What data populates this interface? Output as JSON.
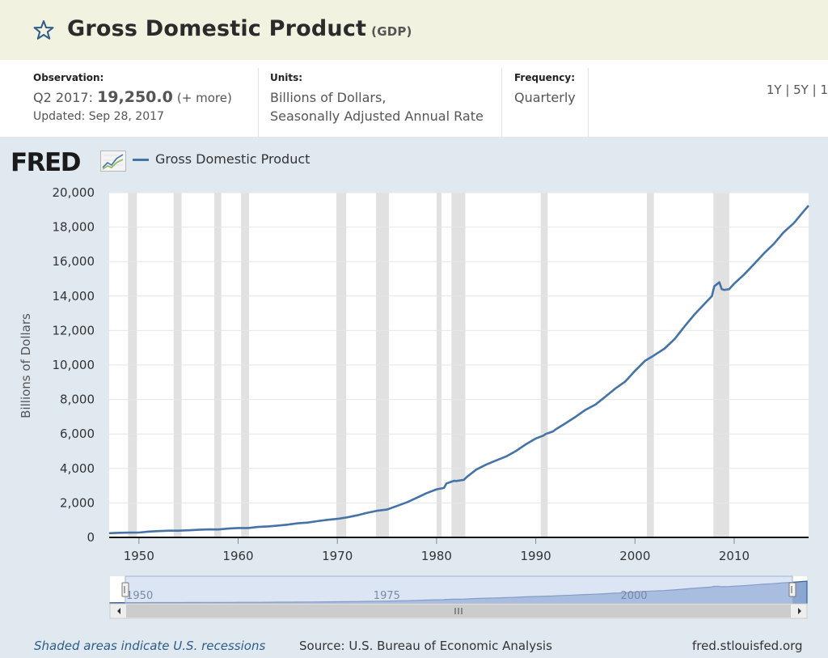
{
  "header": {
    "title": "Gross Domestic Product",
    "series_id": "(GDP)",
    "star_icon": "star-outline-icon"
  },
  "observation": {
    "label": "Observation:",
    "period": "Q2 2017:",
    "value": "19,250.0",
    "more": "(+ more)",
    "updated": "Updated: Sep 28, 2017"
  },
  "units": {
    "label": "Units:",
    "line1": "Billions of Dollars,",
    "line2": "Seasonally Adjusted Annual Rate"
  },
  "frequency": {
    "label": "Frequency:",
    "value": "Quarterly"
  },
  "ranges": [
    "1Y",
    "5Y",
    "1"
  ],
  "brand": {
    "logo": "FRED",
    "graph_icon": "fred-graph-icon"
  },
  "footer": {
    "recessions": "Shaded areas indicate U.S. recessions",
    "source": "Source: U.S. Bureau of Economic Analysis",
    "site": "fred.stlouisfed.org"
  },
  "colors": {
    "line": "#4572a7",
    "recession": "#e1e1e1",
    "navigator_fill": "#8ca6d4",
    "navigator_mask": "#c0cfea"
  },
  "chart_data": {
    "type": "line",
    "title": "",
    "legend": "top-left",
    "xlabel": "",
    "ylabel": "Billions of Dollars",
    "xlim": [
      1947,
      2017.5
    ],
    "ylim": [
      0,
      20000
    ],
    "x_ticks": [
      1950,
      1960,
      1970,
      1980,
      1990,
      2000,
      2010
    ],
    "y_ticks": [
      0,
      2000,
      4000,
      6000,
      8000,
      10000,
      12000,
      14000,
      16000,
      18000,
      20000
    ],
    "y_tick_labels": [
      "0",
      "2,000",
      "4,000",
      "6,000",
      "8,000",
      "10,000",
      "12,000",
      "14,000",
      "16,000",
      "18,000",
      "20,000"
    ],
    "grid": true,
    "recessions": [
      [
        1948.9,
        1949.8
      ],
      [
        1953.5,
        1954.3
      ],
      [
        1957.6,
        1958.3
      ],
      [
        1960.3,
        1961.1
      ],
      [
        1969.9,
        1970.9
      ],
      [
        1973.9,
        1975.2
      ],
      [
        1980.0,
        1980.5
      ],
      [
        1981.5,
        1982.9
      ],
      [
        1990.5,
        1991.2
      ],
      [
        2001.2,
        2001.9
      ],
      [
        2007.9,
        2009.5
      ]
    ],
    "navigator_ticks": [
      1950,
      1975,
      2000
    ],
    "series": [
      {
        "name": "Gross Domestic Product",
        "points": [
          [
            1947,
            243
          ],
          [
            1948,
            266
          ],
          [
            1949,
            275
          ],
          [
            1950,
            280
          ],
          [
            1951,
            336
          ],
          [
            1952,
            366
          ],
          [
            1953,
            389
          ],
          [
            1954,
            391
          ],
          [
            1955,
            415
          ],
          [
            1956,
            440
          ],
          [
            1957,
            465
          ],
          [
            1958,
            460
          ],
          [
            1959,
            510
          ],
          [
            1960,
            543
          ],
          [
            1961,
            545
          ],
          [
            1962,
            605
          ],
          [
            1963,
            638
          ],
          [
            1964,
            686
          ],
          [
            1965,
            743
          ],
          [
            1966,
            815
          ],
          [
            1967,
            861
          ],
          [
            1968,
            942
          ],
          [
            1969,
            1017
          ],
          [
            1970,
            1073
          ],
          [
            1971,
            1164
          ],
          [
            1972,
            1280
          ],
          [
            1973,
            1426
          ],
          [
            1974,
            1545
          ],
          [
            1975,
            1615
          ],
          [
            1976,
            1822
          ],
          [
            1977,
            2031
          ],
          [
            1978,
            2295
          ],
          [
            1979,
            2566
          ],
          [
            1980,
            2790
          ],
          [
            1980.75,
            2870
          ],
          [
            1981,
            3131
          ],
          [
            1981.75,
            3280
          ],
          [
            1982,
            3274
          ],
          [
            1982.75,
            3340
          ],
          [
            1983,
            3480
          ],
          [
            1984,
            3932
          ],
          [
            1985,
            4220
          ],
          [
            1986,
            4463
          ],
          [
            1987,
            4692
          ],
          [
            1988,
            5008
          ],
          [
            1989,
            5400
          ],
          [
            1990,
            5735
          ],
          [
            1990.75,
            5900
          ],
          [
            1991,
            6000
          ],
          [
            1991.75,
            6150
          ],
          [
            1992,
            6264
          ],
          [
            1993,
            6619
          ],
          [
            1994,
            6991
          ],
          [
            1995,
            7393
          ],
          [
            1996,
            7699
          ],
          [
            1997,
            8157
          ],
          [
            1998,
            8631
          ],
          [
            1999,
            9035
          ],
          [
            2000,
            9659
          ],
          [
            2001,
            10238
          ],
          [
            2001.75,
            10500
          ],
          [
            2002,
            10593
          ],
          [
            2003,
            10962
          ],
          [
            2004,
            11512
          ],
          [
            2005,
            12240
          ],
          [
            2006,
            12934
          ],
          [
            2007,
            13545
          ],
          [
            2007.75,
            14000
          ],
          [
            2008,
            14568
          ],
          [
            2008.5,
            14800
          ],
          [
            2008.75,
            14400
          ],
          [
            2009,
            14358
          ],
          [
            2009.5,
            14400
          ],
          [
            2010,
            14721
          ],
          [
            2011,
            15248
          ],
          [
            2012,
            15855
          ],
          [
            2013,
            16475
          ],
          [
            2014,
            17032
          ],
          [
            2015,
            17703
          ],
          [
            2016,
            18227
          ],
          [
            2017,
            18917
          ],
          [
            2017.5,
            19250
          ]
        ]
      }
    ]
  }
}
